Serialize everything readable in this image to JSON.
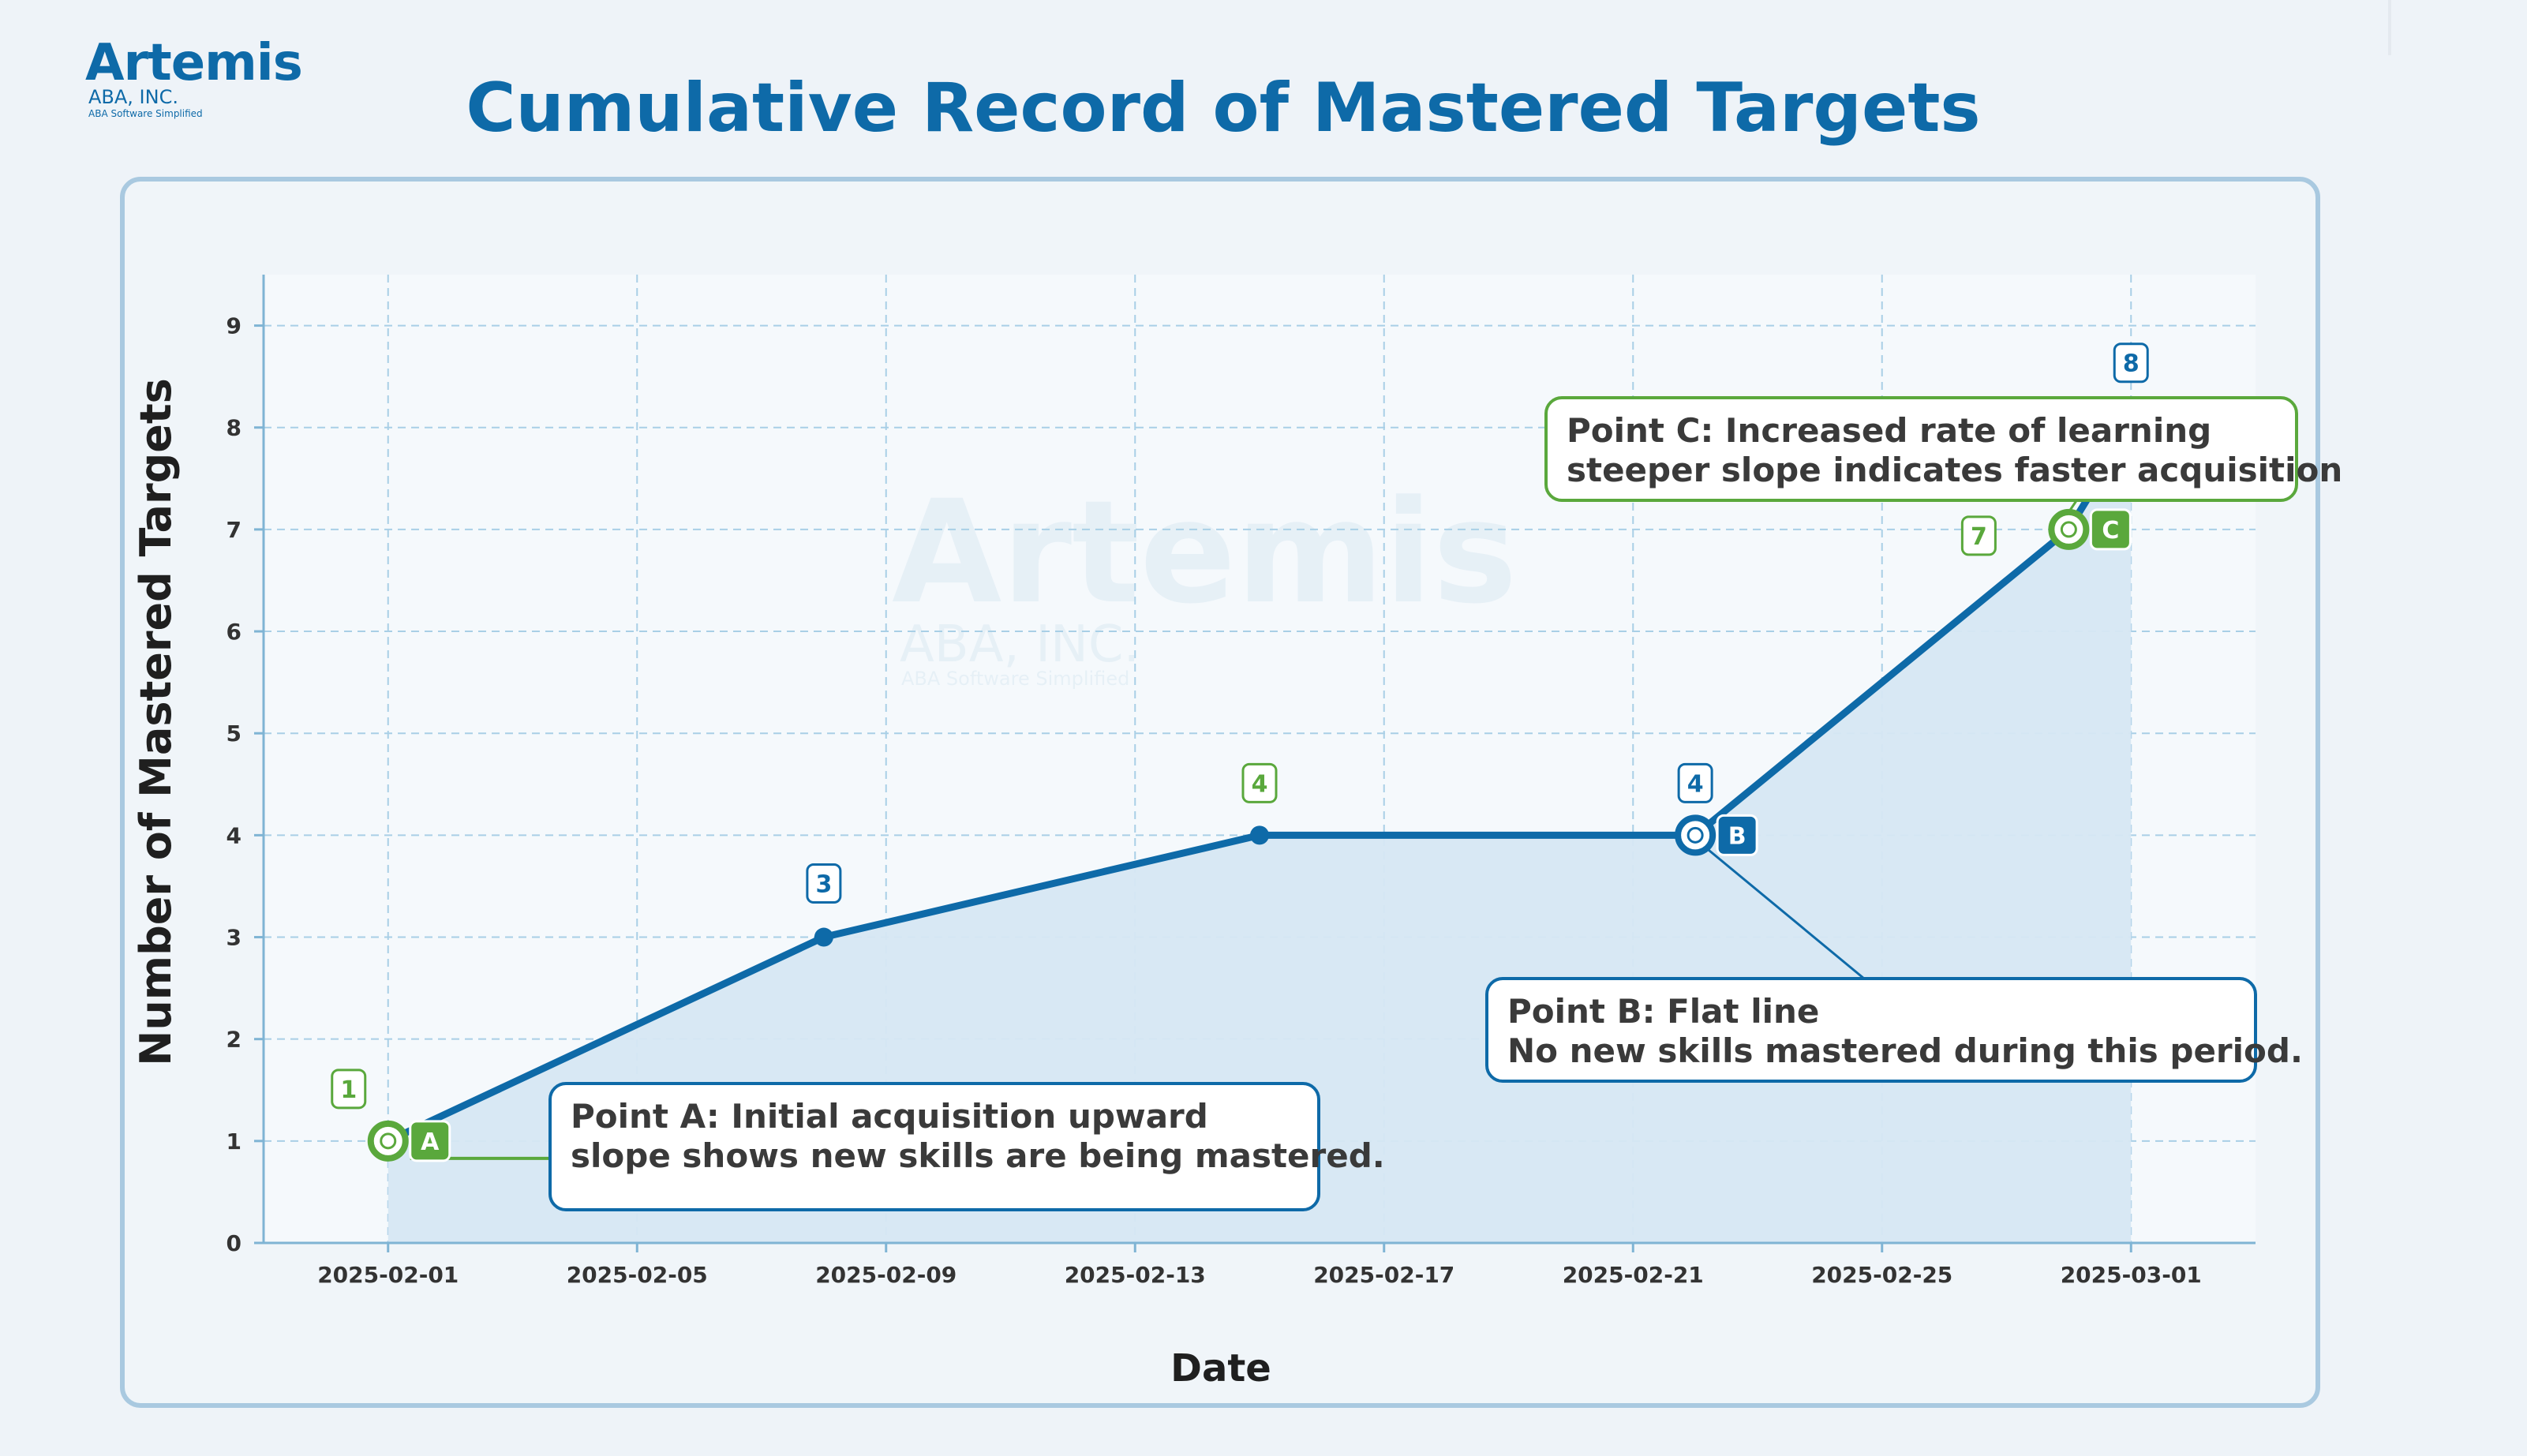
{
  "logo": {
    "word": "Artemis",
    "sub": "ABA, INC.",
    "tagline": "ABA Software Simplified"
  },
  "title": "Cumulative Record of Mastered Targets",
  "colors": {
    "primary": "#0e6aa8",
    "green": "#5aa83c",
    "fill": "#d6e7f3",
    "grid": "#a9cfe6"
  },
  "chart_data": {
    "type": "line",
    "title": "Cumulative Record of Mastered Targets",
    "xlabel": "Date",
    "ylabel": "Number of Mastered Targets",
    "x_ticks": [
      "2025-02-01",
      "2025-02-05",
      "2025-02-09",
      "2025-02-13",
      "2025-02-17",
      "2025-02-21",
      "2025-02-25",
      "2025-03-01"
    ],
    "y_ticks": [
      0,
      1,
      2,
      3,
      4,
      5,
      6,
      7,
      8,
      9
    ],
    "ylim": [
      0,
      9.5
    ],
    "xlim": [
      "2025-01-30",
      "2025-03-03"
    ],
    "grid": true,
    "area_fill": true,
    "series": [
      {
        "x": [
          "2025-02-01",
          "2025-02-08",
          "2025-02-15",
          "2025-02-22",
          "2025-02-28",
          "2025-03-01"
        ],
        "y": [
          1,
          3,
          4,
          4,
          7,
          8
        ]
      }
    ],
    "value_labels": [
      {
        "x": "2025-02-01",
        "text": "1",
        "color": "green"
      },
      {
        "x": "2025-02-08",
        "text": "3",
        "color": "blue"
      },
      {
        "x": "2025-02-15",
        "text": "4",
        "color": "green"
      },
      {
        "x": "2025-02-22",
        "text": "4",
        "color": "blue"
      },
      {
        "x": "2025-02-28",
        "text": "7",
        "color": "green"
      },
      {
        "x": "2025-03-01",
        "text": "8",
        "color": "blue"
      }
    ],
    "markers": [
      {
        "letter": "A",
        "x": "2025-02-01",
        "y": 1,
        "color": "green"
      },
      {
        "letter": "B",
        "x": "2025-02-22",
        "y": 4,
        "color": "blue"
      },
      {
        "letter": "C",
        "x": "2025-02-28",
        "y": 7,
        "color": "green"
      }
    ],
    "annotations": [
      {
        "id": "A",
        "lines": [
          "Point A: Initial acquisition upward",
          "slope shows new skills are being mastered."
        ],
        "color": "blue"
      },
      {
        "id": "B",
        "lines": [
          "Point B: Flat line",
          "No new skills mastered during this period."
        ],
        "color": "blue"
      },
      {
        "id": "C",
        "lines": [
          "Point C: Increased rate of learning",
          "steeper slope indicates faster acquisition"
        ],
        "color": "green"
      }
    ]
  },
  "watermark": {
    "word": "Artemis",
    "sub": "ABA, INC.",
    "tagline": "ABA Software Simplified"
  }
}
